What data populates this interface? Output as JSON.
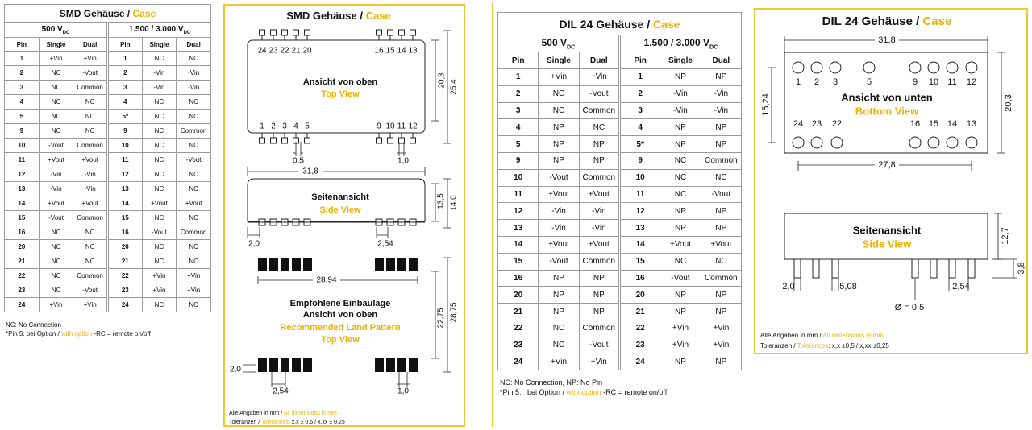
{
  "smd_table": {
    "title": "SMD Gehäuse /",
    "title_case": "Case",
    "groups": [
      {
        "v": "500 V",
        "sub": "DC"
      },
      {
        "v": "1.500 / 3.000 V",
        "sub": "DC"
      }
    ],
    "columns": [
      "Pin",
      "Single",
      "Dual",
      "Pin",
      "Single",
      "Dual"
    ],
    "rows": [
      [
        "1",
        "+Vin",
        "+Vin",
        "1",
        "NC",
        "NC"
      ],
      [
        "2",
        "NC",
        "-Vout",
        "2",
        "-Vin",
        "-Vin"
      ],
      [
        "3",
        "NC",
        "Common",
        "3",
        "-Vin",
        "-Vin"
      ],
      [
        "4",
        "NC",
        "NC",
        "4",
        "NC",
        "NC"
      ],
      [
        "5",
        "NC",
        "NC",
        "5*",
        "NC",
        "NC"
      ],
      [
        "9",
        "NC",
        "NC",
        "9",
        "NC",
        "Common"
      ],
      [
        "10",
        "-Vout",
        "Common",
        "10",
        "NC",
        "NC"
      ],
      [
        "11",
        "+Vout",
        "+Vout",
        "11",
        "NC",
        "-Vout"
      ],
      [
        "12",
        "-Vin",
        "-Vin",
        "12",
        "NC",
        "NC"
      ],
      [
        "13",
        "-Vin",
        "-Vin",
        "13",
        "NC",
        "NC"
      ],
      [
        "14",
        "+Vout",
        "+Vout",
        "14",
        "+Vout",
        "+Vout"
      ],
      [
        "15",
        "-Vout",
        "Common",
        "15",
        "NC",
        "NC"
      ],
      [
        "16",
        "NC",
        "NC",
        "16",
        "-Vout",
        "Common"
      ],
      [
        "20",
        "NC",
        "NC",
        "20",
        "NC",
        "NC"
      ],
      [
        "21",
        "NC",
        "NC",
        "21",
        "NC",
        "NC"
      ],
      [
        "22",
        "NC",
        "Common",
        "22",
        "+Vin",
        "+Vin"
      ],
      [
        "23",
        "NC",
        "-Vout",
        "23",
        "+Vin",
        "+Vin"
      ],
      [
        "24",
        "+Vin",
        "+Vin",
        "24",
        "NC",
        "NC"
      ]
    ],
    "note": "NC: No Connection",
    "pin5_note": {
      "de": "*Pin 5: bei Option /",
      "en": "with option",
      "rest": "-RC = remote on/off"
    }
  },
  "dil_table": {
    "title": "DIL 24 Gehäuse /",
    "title_case": "Case",
    "groups": [
      {
        "v": "500 V",
        "sub": "DC"
      },
      {
        "v": "1.500 / 3.000 V",
        "sub": "DC"
      }
    ],
    "columns": [
      "Pin",
      "Single",
      "Dual",
      "Pin",
      "Single",
      "Dual"
    ],
    "rows": [
      [
        "1",
        "+Vin",
        "+Vin",
        "1",
        "NP",
        "NP"
      ],
      [
        "2",
        "NC",
        "-Vout",
        "2",
        "-Vin",
        "-Vin"
      ],
      [
        "3",
        "NC",
        "Common",
        "3",
        "-Vin",
        "-Vin"
      ],
      [
        "4",
        "NP",
        "NC",
        "4",
        "NP",
        "NP"
      ],
      [
        "5",
        "NP",
        "NP",
        "5*",
        "NP",
        "NP"
      ],
      [
        "9",
        "NP",
        "NP",
        "9",
        "NC",
        "Common"
      ],
      [
        "10",
        "-Vout",
        "Common",
        "10",
        "NC",
        "NC"
      ],
      [
        "11",
        "+Vout",
        "+Vout",
        "11",
        "NC",
        "-Vout"
      ],
      [
        "12",
        "-Vin",
        "-Vin",
        "12",
        "NP",
        "NP"
      ],
      [
        "13",
        "-Vin",
        "-Vin",
        "13",
        "NP",
        "NP"
      ],
      [
        "14",
        "+Vout",
        "+Vout",
        "14",
        "+Vout",
        "+Vout"
      ],
      [
        "15",
        "-Vout",
        "Common",
        "15",
        "NC",
        "NC"
      ],
      [
        "16",
        "NP",
        "NP",
        "16",
        "-Vout",
        "Common"
      ],
      [
        "20",
        "NP",
        "NP",
        "20",
        "NP",
        "NP"
      ],
      [
        "21",
        "NP",
        "NP",
        "21",
        "NP",
        "NP"
      ],
      [
        "22",
        "NC",
        "Common",
        "22",
        "+Vin",
        "+Vin"
      ],
      [
        "23",
        "NC",
        "-Vout",
        "23",
        "+Vin",
        "+Vin"
      ],
      [
        "24",
        "+Vin",
        "+Vin",
        "24",
        "NP",
        "NP"
      ]
    ],
    "note": "NC: No Connection, NP: No Pin",
    "pin5_note": {
      "de": "*Pin 5:   bei Option /",
      "en": "with option",
      "rest": "-RC = remote on/off"
    }
  },
  "smd_drawing": {
    "title": "SMD Gehäuse /",
    "title_case": "Case",
    "top_view": {
      "pins_top": [
        "24",
        "23",
        "22",
        "21",
        "20",
        "16",
        "15",
        "14",
        "13"
      ],
      "pins_bottom": [
        "1",
        "2",
        "3",
        "4",
        "5",
        "9",
        "10",
        "11",
        "12"
      ],
      "label_de": "Ansicht von oben",
      "label_en": "Top View",
      "dims": [
        "20,3",
        "25,4",
        "0,5",
        "1,0"
      ]
    },
    "side_view": {
      "label_de": "Seitenansicht",
      "label_en": "Side View",
      "dims": [
        "31,8",
        "13,5",
        "14,0",
        "2,0",
        "2,54"
      ]
    },
    "land_pattern": {
      "label_de": [
        "Empfohlene Einbaulage",
        "Ansicht von oben"
      ],
      "label_en": [
        "Recommended Land Pattern",
        "Top View"
      ],
      "dims": [
        "28,94",
        "22,75",
        "28,75",
        "2,0",
        "2,54",
        "1,0"
      ]
    },
    "footer": {
      "units_de": "Alle Angaben in mm /",
      "units_en": "All dimensions in mm",
      "tol_de": "Toleranzen /",
      "tol_en": "Tolerances",
      "tol_values": ": x,x ± 0,5 / x,xx ± 0,25"
    }
  },
  "dil_drawing": {
    "title": "DIL 24 Gehäuse /",
    "title_case": "Case",
    "bottom_view": {
      "pins_top": [
        "1",
        "2",
        "3",
        "5",
        "9",
        "10",
        "11",
        "12"
      ],
      "pins_bottom": [
        "24",
        "23",
        "22",
        "16",
        "15",
        "14",
        "13"
      ],
      "label_de": "Ansicht von unten",
      "label_en": "Bottom View",
      "dims": [
        "31,8",
        "15,24",
        "20,3",
        "27,8"
      ]
    },
    "side_view": {
      "label_de": "Seitenansicht",
      "label_en": "Side View",
      "dims": [
        "12,7",
        "3,8",
        "2,0",
        "5,08",
        "2,54",
        "Ø = 0,5"
      ]
    },
    "footer": {
      "units_de": "Alle Angaben in mm /",
      "units_en": "All dimensions in mm",
      "tol_de": "Toleranzen /",
      "tol_en": "Tolerances",
      "tol_values": ": x,x ±0,5 / x,xx ±0,25"
    }
  }
}
